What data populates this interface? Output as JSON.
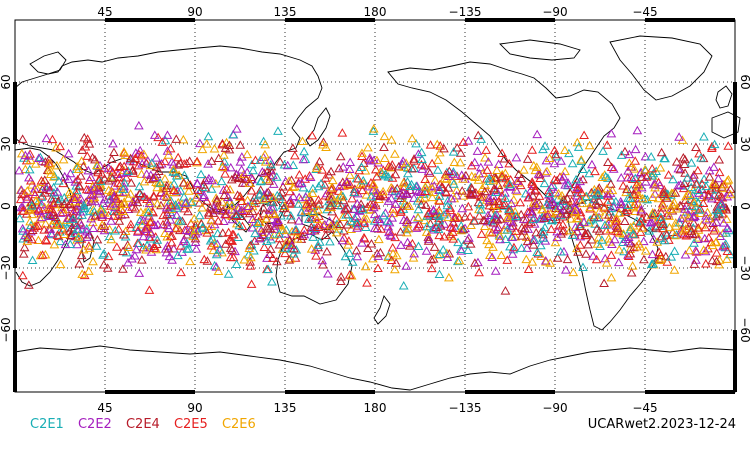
{
  "map": {
    "projection": "cylindrical equidistant",
    "lon_range": [
      0,
      360
    ],
    "lat_range": [
      -90,
      90
    ],
    "grid": "dotted",
    "top_lon_labels": [
      "45",
      "90",
      "135",
      "180",
      "−135",
      "−90",
      "−45"
    ],
    "bottom_lon_labels": [
      "45",
      "90",
      "135",
      "180",
      "−135",
      "−90",
      "−45"
    ],
    "lat_labels": [
      "60",
      "30",
      "0",
      "−30",
      "−60"
    ],
    "lat_band": [
      -45,
      45
    ]
  },
  "legend": {
    "items": [
      {
        "label": "C2E1",
        "color": "#19aeb5"
      },
      {
        "label": "C2E2",
        "color": "#a51fbf"
      },
      {
        "label": "C2E4",
        "color": "#b71c2a"
      },
      {
        "label": "C2E5",
        "color": "#e61f1f"
      },
      {
        "label": "C2E6",
        "color": "#f1a600"
      }
    ]
  },
  "stamp": "UCARwet2.2023-12-24"
}
